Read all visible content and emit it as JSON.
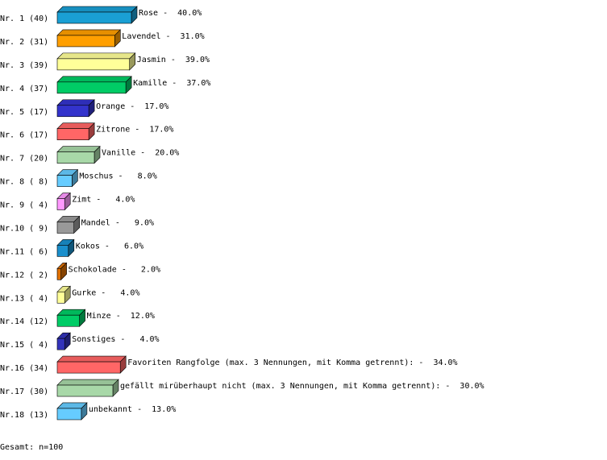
{
  "chart_data": {
    "type": "bar3d",
    "categories": [
      "Nr. 1 (40)",
      "Nr. 2 (31)",
      "Nr. 3 (39)",
      "Nr. 4 (37)",
      "Nr. 5 (17)",
      "Nr. 6 (17)",
      "Nr. 7 (20)",
      "Nr. 8 ( 8)",
      "Nr. 9 ( 4)",
      "Nr.10 ( 9)",
      "Nr.11 ( 6)",
      "Nr.12 ( 2)",
      "Nr.13 ( 4)",
      "Nr.14 (12)",
      "Nr.15 ( 4)",
      "Nr.16 (34)",
      "Nr.17 (30)",
      "Nr.18 (13)"
    ],
    "values": [
      40.0,
      31.0,
      39.0,
      37.0,
      17.0,
      17.0,
      20.0,
      8.0,
      4.0,
      9.0,
      6.0,
      2.0,
      4.0,
      12.0,
      4.0,
      34.0,
      30.0,
      13.0
    ],
    "value_labels": [
      "Rose -  40.0%",
      "Lavendel -  31.0%",
      "Jasmin -  39.0%",
      "Kamille -  37.0%",
      "Orange -  17.0%",
      "Zitrone -  17.0%",
      "Vanille -  20.0%",
      "Moschus -   8.0%",
      "Zimt -   4.0%",
      "Mandel -   9.0%",
      "Kokos -   6.0%",
      "Schokolade -   2.0%",
      "Gurke -   4.0%",
      "Minze -  12.0%",
      "Sonstiges -   4.0%",
      "Favoriten Rangfolge (max. 3 Nennungen, mit Komma getrennt): -  34.0%",
      "gefällt mirüberhaupt nicht (max. 3 Nennungen, mit Komma getrennt): -  30.0%",
      "unbekannt -  13.0%"
    ],
    "colors": [
      "#1a9fd4",
      "#ff9f00",
      "#ffff99",
      "#00cc66",
      "#3333cc",
      "#ff6666",
      "#a8d8a8",
      "#66ccff",
      "#ff99ff",
      "#999999",
      "#1a8fcc",
      "#e07000",
      "#ffff99",
      "#00cc66",
      "#3333bb",
      "#ff6666",
      "#a8d8a8",
      "#66ccff"
    ],
    "footer": "Gesamt: n=100"
  }
}
